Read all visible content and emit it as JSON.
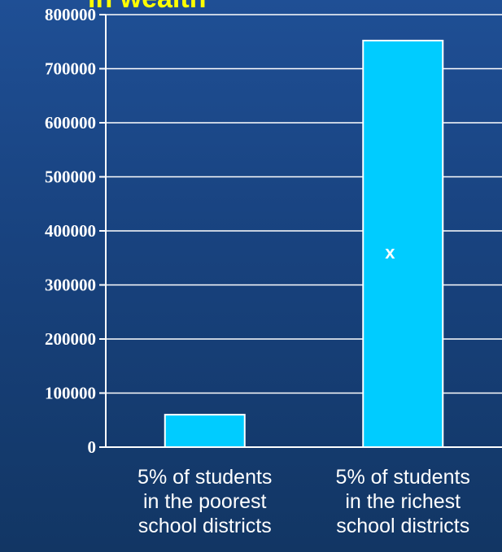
{
  "chart_data": {
    "type": "bar",
    "title": "in wealth",
    "categories": [
      [
        "5% of students",
        "in the poorest",
        "school districts"
      ],
      [
        "5% of students",
        "in the richest",
        "school districts"
      ]
    ],
    "values": [
      60000,
      752000
    ],
    "annotations": [
      "",
      "x"
    ],
    "yticks": [
      "0",
      "100000",
      "200000",
      "300000",
      "400000",
      "500000",
      "600000",
      "700000",
      "800000"
    ],
    "ylim": [
      0,
      800000
    ],
    "grid": true,
    "bar_color": "#00ccff",
    "title_color": "#ffff00",
    "text_color": "#ffffff"
  }
}
